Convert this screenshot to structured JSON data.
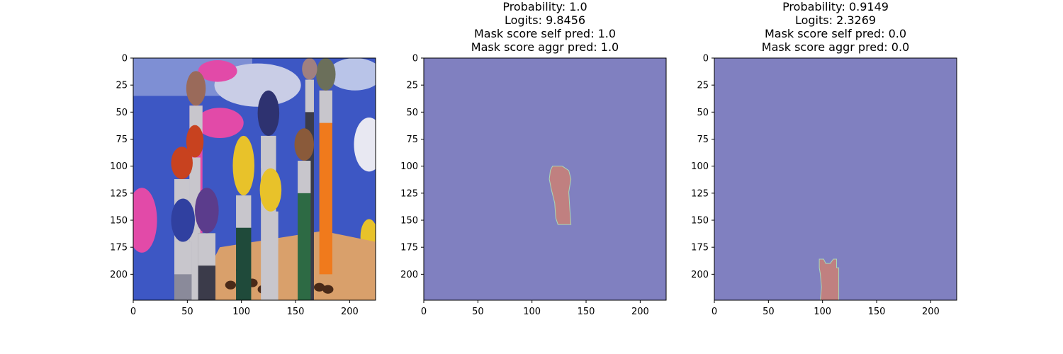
{
  "chart_data": [
    {
      "type": "image",
      "title": [],
      "xlim": [
        0,
        224
      ],
      "ylim": [
        224,
        0
      ],
      "xticks": [
        0,
        50,
        100,
        150,
        200
      ],
      "yticks": [
        0,
        25,
        50,
        75,
        100,
        125,
        150,
        175,
        200
      ],
      "content": "photo of paint brushes in a wooden holder",
      "colors": {
        "background": "#3d57c4",
        "wood": "#d9a06b",
        "orange": "#f07a1c",
        "yellow": "#e8c22a",
        "purple": "#5b3c8c",
        "pink": "#e24aa8",
        "red": "#c8421f",
        "metal": "#c8c6cc",
        "dark_handle": "#1f4a3a"
      }
    },
    {
      "type": "heatmap",
      "title": [
        "Probability: 1.0",
        "Logits: 9.8456",
        "Mask score self pred: 1.0",
        "Mask score aggr pred: 1.0"
      ],
      "xlim": [
        0,
        224
      ],
      "ylim": [
        224,
        0
      ],
      "xticks": [
        0,
        50,
        100,
        150,
        200
      ],
      "yticks": [
        0,
        25,
        50,
        75,
        100,
        125,
        150,
        175,
        200
      ],
      "background_color": "#8080c0",
      "mask_color": "#c08080",
      "mask_polygon": [
        [
          119,
          100
        ],
        [
          128,
          100
        ],
        [
          134,
          104
        ],
        [
          136,
          112
        ],
        [
          134,
          124
        ],
        [
          135,
          140
        ],
        [
          136,
          154
        ],
        [
          124,
          154
        ],
        [
          122,
          148
        ],
        [
          121,
          134
        ],
        [
          118,
          122
        ],
        [
          116,
          112
        ],
        [
          117,
          104
        ]
      ]
    },
    {
      "type": "heatmap",
      "title": [
        "Probability: 0.9149",
        "Logits: 2.3269",
        "Mask score self pred: 0.0",
        "Mask score aggr pred: 0.0"
      ],
      "xlim": [
        0,
        224
      ],
      "ylim": [
        224,
        0
      ],
      "xticks": [
        0,
        50,
        100,
        150,
        200
      ],
      "yticks": [
        0,
        25,
        50,
        75,
        100,
        125,
        150,
        175,
        200
      ],
      "background_color": "#8080c0",
      "mask_color": "#c08080",
      "mask_polygon": [
        [
          97,
          186
        ],
        [
          101,
          186
        ],
        [
          103,
          190
        ],
        [
          107,
          190
        ],
        [
          110,
          186
        ],
        [
          113,
          186
        ],
        [
          113,
          194
        ],
        [
          115,
          194
        ],
        [
          115,
          224
        ],
        [
          98,
          224
        ],
        [
          99,
          212
        ],
        [
          98,
          200
        ],
        [
          97,
          194
        ]
      ]
    }
  ]
}
